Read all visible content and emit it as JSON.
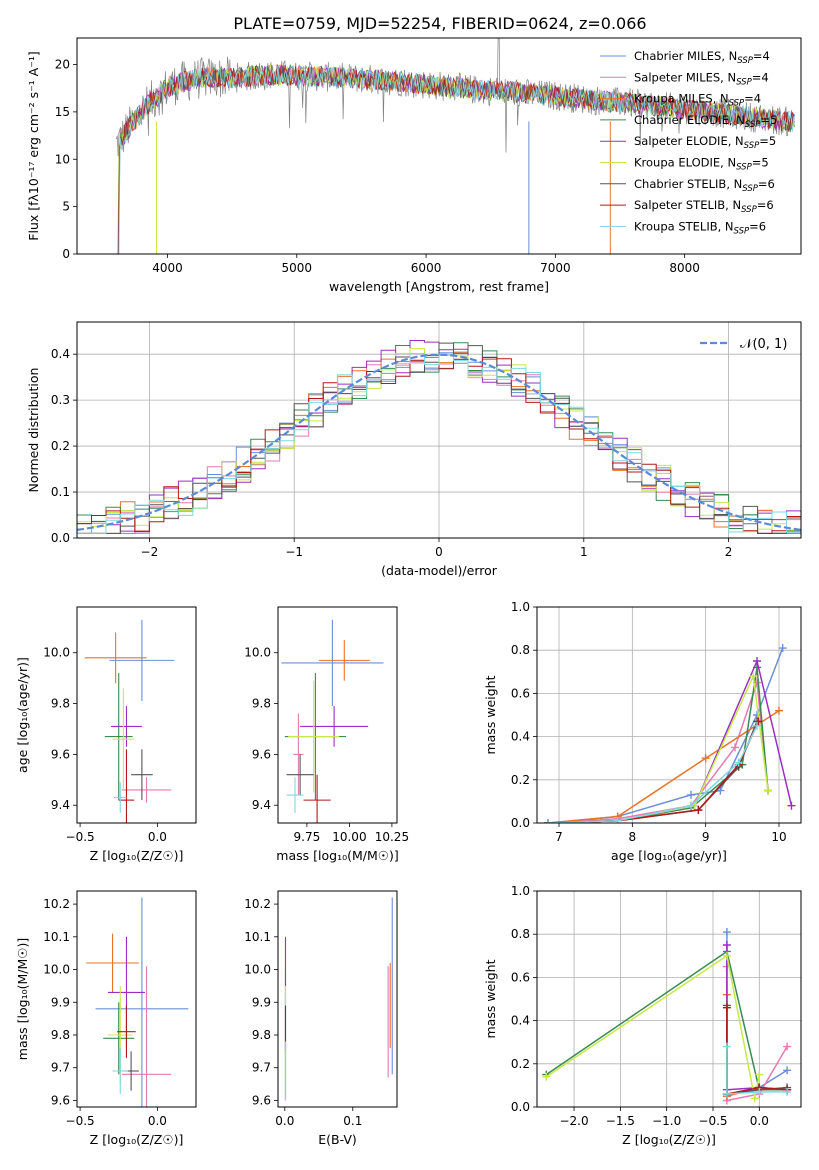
{
  "figure_title": "PLATE=0759, MJD=52254, FIBERID=0624, z=0.066",
  "colors": {
    "chabrier_miles": "#6a8fd8",
    "salpeter_miles": "#e57ab4",
    "kroupa_miles": "#e8742a",
    "chabrier_elodie": "#3a8a52",
    "salpeter_elodie": "#9b2fc0",
    "kroupa_elodie": "#c8e84a",
    "chabrier_stelib": "#555555",
    "salpeter_stelib": "#b21a1a",
    "kroupa_stelib": "#7fd8e0",
    "data": "#808080",
    "normal": "#5b8ad9"
  },
  "chart_data": [
    {
      "id": "spectrum",
      "type": "line",
      "title": "PLATE=0759, MJD=52254, FIBERID=0624, z=0.066",
      "xlabel": "wavelength [Angstrom, rest frame]",
      "ylabel": "Flux [fλ10⁻¹⁷ erg cm⁻² s⁻¹ A⁻¹]",
      "xlim": [
        3300,
        8900
      ],
      "ylim": [
        0,
        22.8
      ],
      "xticks": [
        "4000",
        "5000",
        "6000",
        "7000",
        "8000"
      ],
      "yticks": [
        "0",
        "5",
        "10",
        "15",
        "20"
      ],
      "legend_position": "top-right",
      "grid": false,
      "continuum": {
        "x": [
          3600,
          3650,
          3700,
          3750,
          3800,
          3850,
          3900,
          3950,
          4000,
          4100,
          4200,
          4300,
          4400,
          4500,
          4600,
          4700,
          4800,
          4900,
          5000,
          5200,
          5400,
          5600,
          5800,
          6000,
          6200,
          6400,
          6600,
          6800,
          7000,
          7200,
          7400,
          7600,
          7800,
          8000,
          8200,
          8400,
          8600,
          8850
        ],
        "y": [
          11.5,
          12.3,
          13.3,
          14.2,
          15.0,
          15.8,
          16.4,
          17.0,
          17.6,
          18.1,
          18.4,
          18.6,
          18.6,
          18.6,
          18.7,
          18.8,
          18.9,
          18.9,
          18.8,
          18.7,
          18.6,
          18.4,
          18.2,
          17.9,
          17.6,
          17.3,
          17.2,
          16.9,
          16.7,
          16.4,
          16.1,
          15.9,
          15.6,
          15.3,
          15.0,
          14.7,
          14.3,
          13.9
        ]
      },
      "series": [
        {
          "name": "Chabrier MILES, N",
          "sub": "SSP",
          "suffix": "=4",
          "color_key": "chabrier_miles"
        },
        {
          "name": "Salpeter MILES, N",
          "sub": "SSP",
          "suffix": "=4",
          "color_key": "salpeter_miles"
        },
        {
          "name": "Kroupa MILES, N",
          "sub": "SSP",
          "suffix": "=4",
          "color_key": "kroupa_miles"
        },
        {
          "name": "Chabrier ELODIE, N",
          "sub": "SSP",
          "suffix": "=5",
          "color_key": "chabrier_elodie"
        },
        {
          "name": "Salpeter ELODIE, N",
          "sub": "SSP",
          "suffix": "=5",
          "color_key": "salpeter_elodie"
        },
        {
          "name": "Kroupa ELODIE, N",
          "sub": "SSP",
          "suffix": "=5",
          "color_key": "kroupa_elodie"
        },
        {
          "name": "Chabrier STELIB, N",
          "sub": "SSP",
          "suffix": "=6",
          "color_key": "chabrier_stelib"
        },
        {
          "name": "Salpeter STELIB, N",
          "sub": "SSP",
          "suffix": "=6",
          "color_key": "salpeter_stelib"
        },
        {
          "name": "Kroupa STELIB, N",
          "sub": "SSP",
          "suffix": "=6",
          "color_key": "kroupa_stelib"
        }
      ]
    },
    {
      "id": "residuals",
      "type": "histogram",
      "xlabel": "(data-model)/error",
      "ylabel": "Normed distribution",
      "xlim": [
        -2.5,
        2.5
      ],
      "ylim": [
        0,
        0.47
      ],
      "xticks": [
        "−2",
        "−1",
        "0",
        "1",
        "2"
      ],
      "yticks": [
        "0.0",
        "0.1",
        "0.2",
        "0.3",
        "0.4"
      ],
      "grid": true,
      "legend_position": "top-right",
      "normal_label": "𝒩(0, 1)",
      "bin_width": 0.1
    },
    {
      "id": "age_vs_Z",
      "type": "errorbar",
      "xlabel": "Z [log₁₀(Z/Z☉)]",
      "ylabel": "age  [log₁₀(age/yr)]",
      "xlim": [
        -0.52,
        0.25
      ],
      "ylim": [
        9.33,
        10.18
      ],
      "xticks": [
        -0.5,
        0.0
      ],
      "yticks": [
        9.4,
        9.6,
        9.8,
        10.0
      ],
      "xtick_labels": [
        "−0.5",
        "0.0"
      ],
      "ytick_labels": [
        "9.4",
        "9.6",
        "9.8",
        "10.0"
      ],
      "points": [
        {
          "x": -0.1,
          "xerr": 0.21,
          "y": 9.97,
          "yerr": 0.16,
          "color_key": "chabrier_miles"
        },
        {
          "x": -0.07,
          "xerr": 0.16,
          "y": 9.46,
          "yerr": 0.05,
          "color_key": "salpeter_miles"
        },
        {
          "x": -0.27,
          "xerr": 0.2,
          "y": 9.98,
          "yerr": 0.1,
          "color_key": "kroupa_miles"
        },
        {
          "x": -0.25,
          "xerr": 0.09,
          "y": 9.67,
          "yerr": 0.25,
          "color_key": "chabrier_elodie"
        },
        {
          "x": -0.2,
          "xerr": 0.1,
          "y": 9.71,
          "yerr": 0.08,
          "color_key": "salpeter_elodie"
        },
        {
          "x": -0.22,
          "xerr": 0.07,
          "y": 9.66,
          "yerr": 0.2,
          "color_key": "kroupa_elodie"
        },
        {
          "x": -0.1,
          "xerr": 0.07,
          "y": 9.52,
          "yerr": 0.1,
          "color_key": "chabrier_stelib"
        },
        {
          "x": -0.2,
          "xerr": 0.05,
          "y": 9.42,
          "yerr": 0.2,
          "color_key": "salpeter_stelib"
        },
        {
          "x": -0.24,
          "xerr": 0.04,
          "y": 9.43,
          "yerr": 0.06,
          "color_key": "kroupa_stelib"
        }
      ]
    },
    {
      "id": "age_vs_mass",
      "type": "errorbar",
      "xlabel": "mass [log₁₀(M/M☉)]",
      "ylabel": "",
      "xlim": [
        9.58,
        10.28
      ],
      "ylim": [
        9.33,
        10.18
      ],
      "xticks": [
        9.75,
        10.0,
        10.25
      ],
      "yticks": [
        9.4,
        9.6,
        9.8,
        10.0
      ],
      "xtick_labels": [
        "9.75",
        "10.00",
        "10.25"
      ],
      "ytick_labels": [
        "9.4",
        "9.6",
        "9.8",
        "10.0"
      ],
      "points": [
        {
          "x": 9.9,
          "xerr": 0.3,
          "y": 9.96,
          "yerr": 0.17,
          "color_key": "chabrier_miles"
        },
        {
          "x": 9.7,
          "xerr": 0.03,
          "y": 9.6,
          "yerr": 0.16,
          "color_key": "salpeter_miles"
        },
        {
          "x": 9.97,
          "xerr": 0.15,
          "y": 9.97,
          "yerr": 0.08,
          "color_key": "kroupa_miles"
        },
        {
          "x": 9.8,
          "xerr": 0.18,
          "y": 9.67,
          "yerr": 0.25,
          "color_key": "chabrier_elodie"
        },
        {
          "x": 9.91,
          "xerr": 0.2,
          "y": 9.71,
          "yerr": 0.08,
          "color_key": "salpeter_elodie"
        },
        {
          "x": 9.79,
          "xerr": 0.15,
          "y": 9.67,
          "yerr": 0.22,
          "color_key": "kroupa_elodie"
        },
        {
          "x": 9.71,
          "xerr": 0.08,
          "y": 9.52,
          "yerr": 0.08,
          "color_key": "chabrier_stelib"
        },
        {
          "x": 9.81,
          "xerr": 0.08,
          "y": 9.42,
          "yerr": 0.1,
          "color_key": "salpeter_stelib"
        },
        {
          "x": 9.68,
          "xerr": 0.05,
          "y": 9.44,
          "yerr": 0.07,
          "color_key": "kroupa_stelib"
        }
      ]
    },
    {
      "id": "massweight_vs_age",
      "type": "line",
      "xlabel": "age  [log₁₀(age/yr)]",
      "ylabel": "mass weight",
      "xlim": [
        6.7,
        10.3
      ],
      "ylim": [
        0,
        1.0
      ],
      "xticks": [
        7,
        8,
        9,
        10
      ],
      "yticks": [
        0.0,
        0.2,
        0.4,
        0.6,
        0.8,
        1.0
      ],
      "xtick_labels": [
        "7",
        "8",
        "9",
        "10"
      ],
      "ytick_labels": [
        "0.0",
        "0.2",
        "0.4",
        "0.6",
        "0.8",
        "1.0"
      ],
      "grid": true,
      "series": [
        {
          "color_key": "chabrier_miles",
          "x": [
            6.85,
            7.8,
            8.8,
            9.2,
            9.7,
            10.05
          ],
          "y": [
            0.0,
            0.03,
            0.13,
            0.15,
            0.5,
            0.81
          ]
        },
        {
          "color_key": "salpeter_miles",
          "x": [
            6.85,
            7.8,
            8.8,
            9.4,
            9.7,
            9.85
          ],
          "y": [
            0.0,
            0.02,
            0.08,
            0.35,
            0.65,
            0.15
          ]
        },
        {
          "color_key": "kroupa_miles",
          "x": [
            6.85,
            7.8,
            9.0,
            10.0
          ],
          "y": [
            0.0,
            0.03,
            0.3,
            0.52
          ]
        },
        {
          "color_key": "chabrier_elodie",
          "x": [
            6.85,
            7.8,
            8.8,
            9.5,
            9.7,
            9.85
          ],
          "y": [
            0.0,
            0.01,
            0.07,
            0.27,
            0.72,
            0.15
          ]
        },
        {
          "color_key": "salpeter_elodie",
          "x": [
            6.85,
            7.8,
            8.85,
            9.7,
            10.17
          ],
          "y": [
            0.0,
            0.01,
            0.08,
            0.75,
            0.08
          ]
        },
        {
          "color_key": "kroupa_elodie",
          "x": [
            6.85,
            7.8,
            8.85,
            9.65,
            9.85
          ],
          "y": [
            0.0,
            0.01,
            0.08,
            0.68,
            0.15
          ]
        },
        {
          "color_key": "chabrier_stelib",
          "x": [
            6.85,
            7.8,
            8.9,
            9.45,
            9.7
          ],
          "y": [
            0.0,
            0.01,
            0.06,
            0.26,
            0.47
          ]
        },
        {
          "color_key": "salpeter_stelib",
          "x": [
            6.85,
            7.8,
            8.9,
            9.45,
            9.72
          ],
          "y": [
            0.0,
            0.01,
            0.06,
            0.27,
            0.47
          ]
        },
        {
          "color_key": "kroupa_stelib",
          "x": [
            6.85,
            7.8,
            8.8,
            9.45,
            9.7
          ],
          "y": [
            0.0,
            0.01,
            0.08,
            0.28,
            0.45
          ]
        }
      ]
    },
    {
      "id": "mass_vs_Z",
      "type": "errorbar",
      "xlabel": "Z [log₁₀(Z/Z☉)]",
      "ylabel": "mass [log₁₀(M/M☉)]",
      "xlim": [
        -0.52,
        0.25
      ],
      "ylim": [
        9.58,
        10.24
      ],
      "xticks": [
        -0.5,
        0.0
      ],
      "yticks": [
        9.6,
        9.7,
        9.8,
        9.9,
        10.0,
        10.1,
        10.2
      ],
      "xtick_labels": [
        "−0.5",
        "0.0"
      ],
      "ytick_labels": [
        "9.6",
        "9.7",
        "9.8",
        "9.9",
        "10.0",
        "10.1",
        "10.2"
      ],
      "points": [
        {
          "x": -0.1,
          "xerr": 0.3,
          "y": 9.88,
          "yerr": 0.34,
          "color_key": "chabrier_miles"
        },
        {
          "x": -0.07,
          "xerr": 0.16,
          "y": 9.68,
          "yerr": 0.33,
          "color_key": "salpeter_miles"
        },
        {
          "x": -0.29,
          "xerr": 0.17,
          "y": 10.02,
          "yerr": 0.09,
          "color_key": "kroupa_miles"
        },
        {
          "x": -0.25,
          "xerr": 0.1,
          "y": 9.79,
          "yerr": 0.11,
          "color_key": "chabrier_elodie"
        },
        {
          "x": -0.2,
          "xerr": 0.12,
          "y": 9.93,
          "yerr": 0.17,
          "color_key": "salpeter_elodie"
        },
        {
          "x": -0.24,
          "xerr": 0.08,
          "y": 9.8,
          "yerr": 0.15,
          "color_key": "kroupa_elodie"
        },
        {
          "x": -0.17,
          "xerr": 0.05,
          "y": 9.69,
          "yerr": 0.06,
          "color_key": "chabrier_stelib"
        },
        {
          "x": -0.2,
          "xerr": 0.06,
          "y": 9.81,
          "yerr": 0.08,
          "color_key": "salpeter_stelib"
        },
        {
          "x": -0.24,
          "xerr": 0.05,
          "y": 9.69,
          "yerr": 0.07,
          "color_key": "kroupa_stelib"
        }
      ]
    },
    {
      "id": "mass_vs_EBV",
      "type": "errorbar",
      "xlabel": "E(B-V)",
      "ylabel": "",
      "xlim": [
        -0.01,
        0.165
      ],
      "ylim": [
        9.58,
        10.24
      ],
      "xticks": [
        0.0,
        0.1
      ],
      "yticks": [
        9.6,
        9.7,
        9.8,
        9.9,
        10.0,
        10.1,
        10.2
      ],
      "xtick_labels": [
        "0.0",
        "0.1"
      ],
      "ytick_labels": [
        "9.6",
        "9.7",
        "9.8",
        "9.9",
        "10.0",
        "10.1",
        "10.2"
      ],
      "points": [
        {
          "x": 0.158,
          "xerr": 0,
          "y": 9.95,
          "yerr": 0.27,
          "color_key": "chabrier_miles"
        },
        {
          "x": 0.152,
          "xerr": 0,
          "y": 9.84,
          "yerr": 0.17,
          "color_key": "salpeter_miles"
        },
        {
          "x": 0.155,
          "xerr": 0,
          "y": 9.89,
          "yerr": 0.13,
          "color_key": "kroupa_miles"
        },
        {
          "x": 0.001,
          "xerr": 0,
          "y": 9.8,
          "yerr": 0.2,
          "color_key": "chabrier_elodie"
        },
        {
          "x": 0.001,
          "xerr": 0,
          "y": 9.93,
          "yerr": 0.17,
          "color_key": "salpeter_elodie"
        },
        {
          "x": 0.001,
          "xerr": 0,
          "y": 9.8,
          "yerr": 0.15,
          "color_key": "kroupa_elodie"
        },
        {
          "x": 0.001,
          "xerr": 0,
          "y": 9.69,
          "yerr": 0.08,
          "color_key": "chabrier_stelib"
        },
        {
          "x": 0.001,
          "xerr": 0,
          "y": 9.82,
          "yerr": 0.07,
          "color_key": "salpeter_stelib"
        },
        {
          "x": 0.001,
          "xerr": 0,
          "y": 9.69,
          "yerr": 0.09,
          "color_key": "kroupa_stelib"
        }
      ]
    },
    {
      "id": "massweight_vs_Z",
      "type": "line",
      "xlabel": "Z [log₁₀(Z/Z☉)]",
      "ylabel": "mass weight",
      "xlim": [
        -2.4,
        0.45
      ],
      "ylim": [
        0,
        1.0
      ],
      "xticks": [
        -2.0,
        -1.5,
        -1.0,
        -0.5,
        0.0
      ],
      "yticks": [
        0.0,
        0.2,
        0.4,
        0.6,
        0.8,
        1.0
      ],
      "xtick_labels": [
        "−2.0",
        "−1.5",
        "−1.0",
        "−0.5",
        "0.0"
      ],
      "ytick_labels": [
        "0.0",
        "0.2",
        "0.4",
        "0.6",
        "0.8",
        "1.0"
      ],
      "grid": true,
      "series": [
        {
          "color_key": "chabrier_miles",
          "x": [
            -0.35,
            -0.35,
            0.0,
            0.3
          ],
          "y": [
            0.81,
            0.05,
            0.09,
            0.17
          ]
        },
        {
          "color_key": "salpeter_miles",
          "x": [
            -0.35,
            -0.35,
            0.0,
            0.3
          ],
          "y": [
            0.65,
            0.03,
            0.06,
            0.28
          ]
        },
        {
          "color_key": "kroupa_miles",
          "x": [
            -0.35,
            -0.35,
            0.0,
            0.3
          ],
          "y": [
            0.52,
            0.05,
            0.09,
            0.08
          ]
        },
        {
          "color_key": "chabrier_elodie",
          "x": [
            -2.3,
            -0.35,
            0.0,
            0.3
          ],
          "y": [
            0.15,
            0.72,
            0.08,
            0.08
          ]
        },
        {
          "color_key": "salpeter_elodie",
          "x": [
            -0.35,
            -0.35,
            0.0,
            0.3
          ],
          "y": [
            0.75,
            0.08,
            0.09,
            0.08
          ]
        },
        {
          "color_key": "kroupa_elodie",
          "x": [
            -2.3,
            -0.35,
            -0.05,
            0.0
          ],
          "y": [
            0.14,
            0.7,
            0.04,
            0.15
          ]
        },
        {
          "color_key": "chabrier_stelib",
          "x": [
            -0.35,
            -0.35,
            0.0,
            0.3
          ],
          "y": [
            0.47,
            0.06,
            0.08,
            0.09
          ]
        },
        {
          "color_key": "salpeter_stelib",
          "x": [
            -0.35,
            -0.35,
            0.0,
            0.3
          ],
          "y": [
            0.46,
            0.06,
            0.09,
            0.08
          ]
        },
        {
          "color_key": "kroupa_stelib",
          "x": [
            -0.35,
            -0.35,
            0.0,
            0.3
          ],
          "y": [
            0.28,
            0.06,
            0.07,
            0.07
          ]
        }
      ]
    }
  ]
}
